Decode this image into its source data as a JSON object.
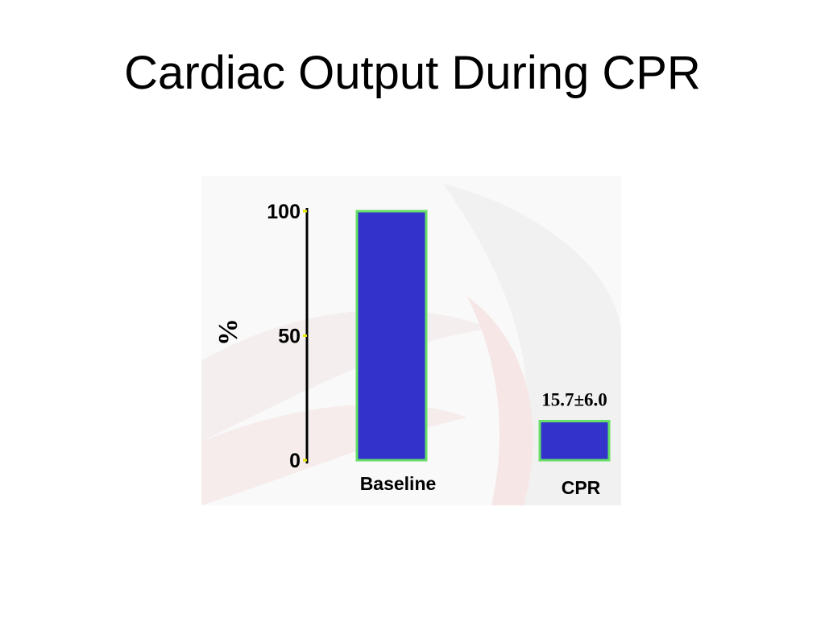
{
  "slide": {
    "title": "Cardiac Output During CPR"
  },
  "chart_data": {
    "type": "bar",
    "title": "",
    "ylabel": "%",
    "xlabel": "",
    "ylim": [
      0,
      100
    ],
    "yticks": [
      0,
      50,
      100
    ],
    "ytick_labels": [
      "0",
      "50",
      "100"
    ],
    "categories": [
      "Baseline",
      "CPR"
    ],
    "values": [
      100,
      15.7
    ],
    "data_labels": [
      "",
      "15.7±6.0"
    ],
    "bar_color": "#3333cc",
    "bar_outline_color": "#66e066",
    "tick_mark_color": "#e8e800",
    "grid": false,
    "legend": "none"
  }
}
